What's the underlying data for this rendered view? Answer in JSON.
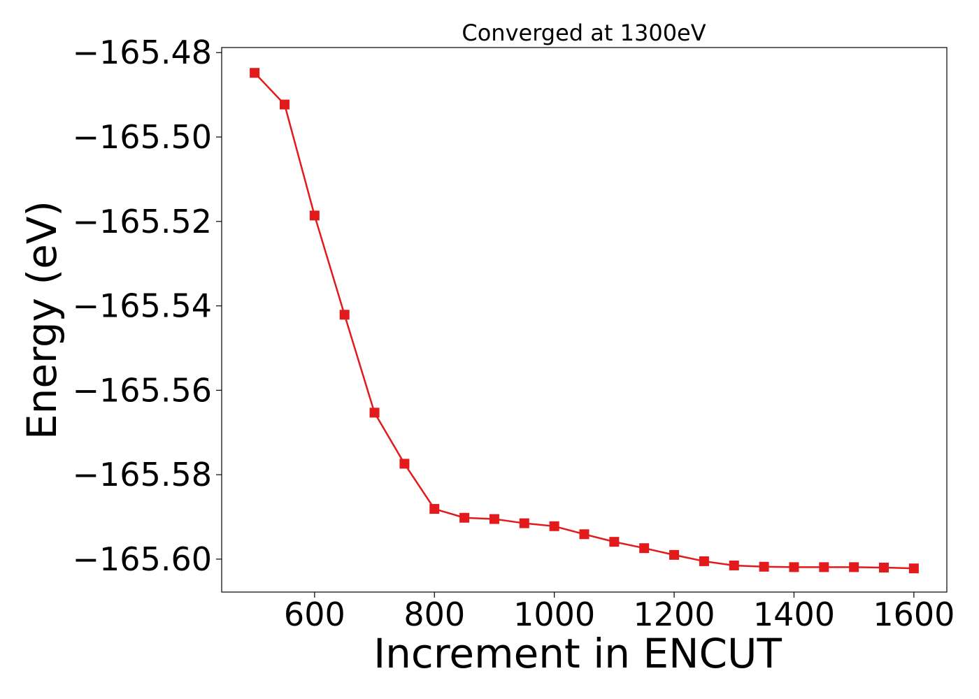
{
  "chart_data": {
    "type": "line",
    "title": "Converged at 1300eV",
    "xlabel": "Increment in ENCUT",
    "ylabel": "Energy (eV)",
    "xlim": [
      445,
      1655
    ],
    "ylim": [
      -165.6078,
      -165.4788
    ],
    "xticks": [
      600,
      800,
      1000,
      1200,
      1400,
      1600
    ],
    "xtick_labels": [
      "600",
      "800",
      "1000",
      "1200",
      "1400",
      "1600"
    ],
    "yticks": [
      -165.48,
      -165.5,
      -165.52,
      -165.54,
      -165.56,
      -165.58,
      -165.6
    ],
    "ytick_labels": [
      "−165.48",
      "−165.50",
      "−165.52",
      "−165.54",
      "−165.56",
      "−165.58",
      "−165.60"
    ],
    "grid": false,
    "marker": "square",
    "color": "#e31a1c",
    "series": [
      {
        "x": [
          500,
          550,
          600,
          650,
          700,
          750,
          800,
          850,
          900,
          950,
          1000,
          1050,
          1100,
          1150,
          1200,
          1250,
          1300,
          1350,
          1400,
          1450,
          1500,
          1550,
          1600
        ],
        "values": [
          -165.4848,
          -165.4923,
          -165.5186,
          -165.5421,
          -165.5653,
          -165.5774,
          -165.5881,
          -165.5902,
          -165.5905,
          -165.5915,
          -165.5922,
          -165.5941,
          -165.5959,
          -165.5974,
          -165.599,
          -165.6005,
          -165.6015,
          -165.6018,
          -165.6019,
          -165.6019,
          -165.6019,
          -165.602,
          -165.6022
        ]
      }
    ]
  }
}
